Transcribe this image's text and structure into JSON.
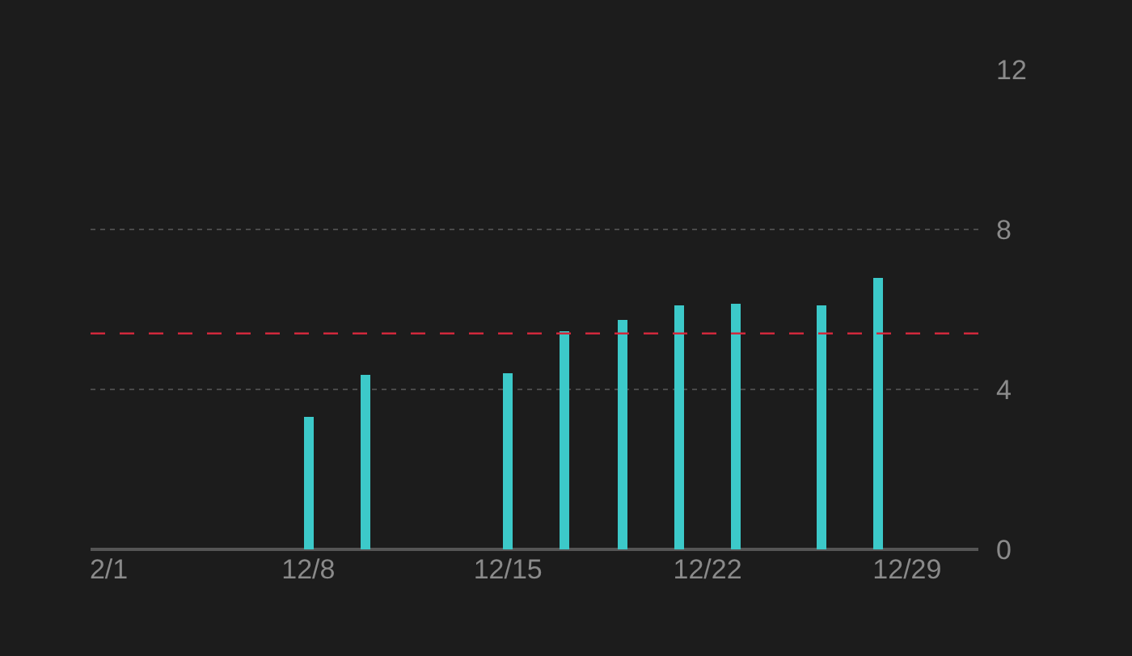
{
  "chart_data": {
    "type": "bar",
    "categories": [
      "2/1",
      null,
      null,
      null,
      null,
      null,
      null,
      "12/8",
      null,
      null,
      null,
      null,
      null,
      null,
      "12/15",
      null,
      null,
      null,
      null,
      null,
      null,
      "12/22",
      null,
      null,
      null,
      null,
      null,
      null,
      "12/29",
      null,
      null
    ],
    "values": [
      null,
      null,
      null,
      null,
      null,
      null,
      null,
      3.3,
      null,
      4.35,
      null,
      null,
      null,
      null,
      4.4,
      null,
      5.45,
      null,
      5.75,
      null,
      6.1,
      null,
      6.15,
      null,
      null,
      6.1,
      null,
      6.8,
      null,
      null,
      null
    ],
    "color": "#3cc9c9",
    "ylim": [
      0,
      12
    ],
    "yticks": [
      0,
      4,
      8,
      12
    ],
    "grid": "y",
    "ref_lines": [
      {
        "axis": "y",
        "value": 5.4,
        "color": "#d0283c",
        "line_style": "dashed"
      }
    ]
  }
}
